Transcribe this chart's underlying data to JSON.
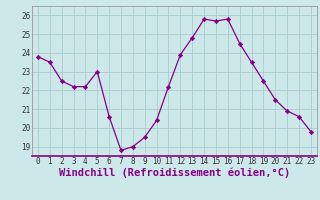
{
  "x": [
    0,
    1,
    2,
    3,
    4,
    5,
    6,
    7,
    8,
    9,
    10,
    11,
    12,
    13,
    14,
    15,
    16,
    17,
    18,
    19,
    20,
    21,
    22,
    23
  ],
  "y": [
    23.8,
    23.5,
    22.5,
    22.2,
    22.2,
    23.0,
    20.6,
    18.8,
    19.0,
    19.5,
    20.4,
    22.2,
    23.9,
    24.8,
    25.8,
    25.7,
    25.8,
    24.5,
    23.5,
    22.5,
    21.5,
    20.9,
    20.6,
    19.8
  ],
  "line_color": "#880088",
  "marker": "D",
  "marker_size": 2.2,
  "bg_color": "#cce8e8",
  "grid_color": "#aacccc",
  "xlabel": "Windchill (Refroidissement éolien,°C)",
  "xlim": [
    -0.5,
    23.5
  ],
  "ylim": [
    18.5,
    26.5
  ],
  "yticks": [
    19,
    20,
    21,
    22,
    23,
    24,
    25,
    26
  ],
  "xticks": [
    0,
    1,
    2,
    3,
    4,
    5,
    6,
    7,
    8,
    9,
    10,
    11,
    12,
    13,
    14,
    15,
    16,
    17,
    18,
    19,
    20,
    21,
    22,
    23
  ],
  "tick_fontsize": 5.5,
  "xlabel_fontsize": 7.5
}
